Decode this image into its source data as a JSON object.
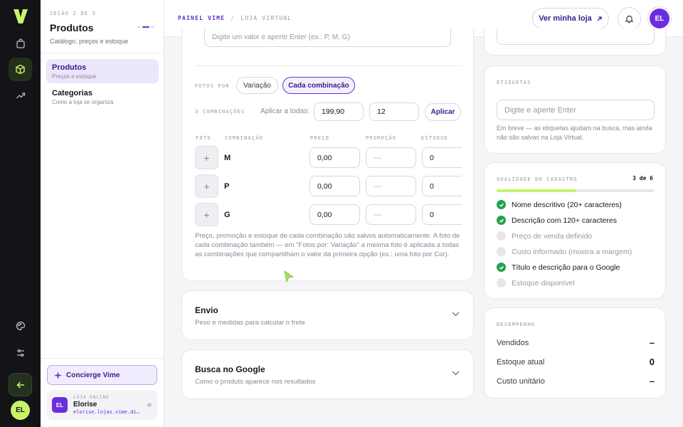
{
  "rail": {
    "logo": "V",
    "icons": [
      "shopping-bag-icon",
      "box-icon",
      "trending-up-icon",
      "palette-icon",
      "sliders-icon",
      "arrow-left-icon"
    ],
    "user_initials": "EL"
  },
  "sidebar": {
    "step": "SEÇÃO 2 DE 3",
    "title": "Produtos",
    "subtitle": "Catálogo, preços e estoque",
    "items": [
      {
        "label": "Produtos",
        "sub": "Preços e estoque"
      },
      {
        "label": "Categorias",
        "sub": "Como a loja se organiza"
      }
    ],
    "concierge": "Concierge Vime",
    "store": {
      "kicker": "LOJA ONLINE",
      "name": "Elorise",
      "url": "elorise.lojas.vime.di…",
      "initials": "EL"
    }
  },
  "topbar": {
    "crumb_1": "PAINEL VIME",
    "crumb_sep": "/",
    "crumb_2": "LOJA VIRTUAL",
    "store_button": "Ver minha loja",
    "avatar": "EL"
  },
  "variations": {
    "value_placeholder": "Digite um valor e aperte Enter (ex.: P, M, G)",
    "photos_label": "FOTOS POR",
    "photo_modes": [
      "Variação",
      "Cada combinação"
    ],
    "combo_count": "3 COMBINAÇÕES",
    "apply_all_label": "Aplicar a todas:",
    "apply_price": "199,90",
    "apply_stock": "12",
    "apply_button": "Aplicar",
    "columns": {
      "foto": "FOTO",
      "combinacao": "COMBINAÇÃO",
      "preco": "PREÇO",
      "promocao": "PROMOÇÃO",
      "estoque": "ESTOQUE"
    },
    "rows": [
      {
        "name": "M",
        "price": "0,00",
        "promo": "—",
        "stock": "0"
      },
      {
        "name": "P",
        "price": "0,00",
        "promo": "—",
        "stock": "0"
      },
      {
        "name": "G",
        "price": "0,00",
        "promo": "—",
        "stock": "0"
      }
    ],
    "note": "Preço, promoção e estoque de cada combinação são salvos automaticamente. A foto de cada combinação também — em \"Fotos por: Variação\" a mesma foto é aplicada a todas as combinações que compartilham o valor da primeira opção (ex.: uma foto por Cor)."
  },
  "shipping": {
    "title": "Envio",
    "subtitle": "Peso e medidas para calcular o frete"
  },
  "google": {
    "title": "Busca no Google",
    "subtitle": "Como o produto aparece nos resultados"
  },
  "tags": {
    "label": "ETIQUETAS",
    "placeholder": "Digite e aperte Enter",
    "help": "Em breve — as etiquetas ajudam na busca, mas ainda não são salvas na Loja Virtual."
  },
  "quality": {
    "label": "QUALIDADE DO CADASTRO",
    "score": "3 de 6",
    "progress": 0.5,
    "items": [
      {
        "label": "Nome descritivo (20+ caracteres)",
        "done": true
      },
      {
        "label": "Descrição com 120+ caracteres",
        "done": true
      },
      {
        "label": "Preço de venda definido",
        "done": false
      },
      {
        "label": "Custo informado (mostra a margem)",
        "done": false
      },
      {
        "label": "Título e descrição para o Google",
        "done": true
      },
      {
        "label": "Estoque disponível",
        "done": false
      }
    ]
  },
  "performance": {
    "label": "DESEMPENHO",
    "stats": [
      {
        "label": "Vendidos",
        "value": "–"
      },
      {
        "label": "Estoque atual",
        "value": "0"
      },
      {
        "label": "Custo unitário",
        "value": "–"
      }
    ]
  },
  "colors": {
    "accent": "#6a2ee0",
    "lime": "#c9f26b",
    "success": "#21a34b",
    "rail": "#141318"
  }
}
